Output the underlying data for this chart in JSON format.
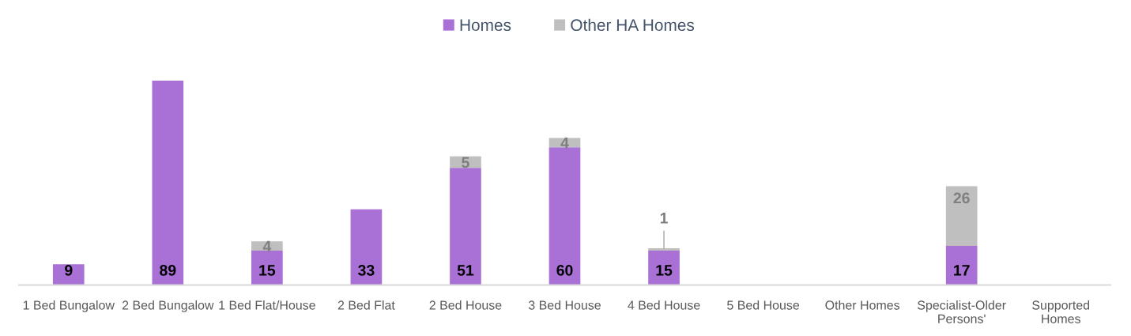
{
  "chart_data": {
    "type": "bar",
    "stacked": true,
    "categories": [
      "1 Bed Bungalow",
      "2 Bed Bungalow",
      "1 Bed Flat/House",
      "2 Bed Flat",
      "2 Bed House",
      "3 Bed House",
      "4 Bed House",
      "5 Bed House",
      "Other Homes",
      "Specialist-Older\nPersons'",
      "Supported\nHomes"
    ],
    "series": [
      {
        "name": "Homes",
        "color": "#a970d6",
        "values": [
          9,
          89,
          15,
          33,
          51,
          60,
          15,
          null,
          null,
          17,
          null
        ]
      },
      {
        "name": "Other HA Homes",
        "color": "#bfbfbf",
        "values": [
          null,
          null,
          4,
          null,
          5,
          4,
          1,
          null,
          null,
          26,
          null
        ]
      }
    ],
    "tick_labels": "x",
    "data_labels": true,
    "legend": "top"
  }
}
